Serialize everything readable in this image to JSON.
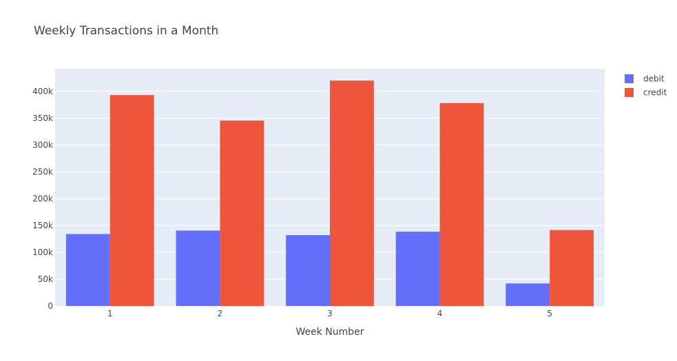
{
  "chart_data": {
    "type": "bar",
    "title": "Weekly Transactions in a Month",
    "xlabel": "Week Number",
    "ylabel": "",
    "categories": [
      "1",
      "2",
      "3",
      "4",
      "5"
    ],
    "series": [
      {
        "name": "debit",
        "color": "#636efa",
        "values": [
          134000,
          140500,
          132000,
          138500,
          42000
        ]
      },
      {
        "name": "credit",
        "color": "#ef553b",
        "values": [
          393000,
          345500,
          420000,
          378000,
          141500
        ]
      }
    ],
    "ylim": [
      0,
      442000
    ],
    "yticks": [
      0,
      50000,
      100000,
      150000,
      200000,
      250000,
      300000,
      350000,
      400000
    ],
    "ytick_labels": [
      "0",
      "50k",
      "100k",
      "150k",
      "200k",
      "250k",
      "300k",
      "350k",
      "400k"
    ],
    "grid": true,
    "legend_position": "top-right",
    "plot_background": "#e5ecf6"
  }
}
